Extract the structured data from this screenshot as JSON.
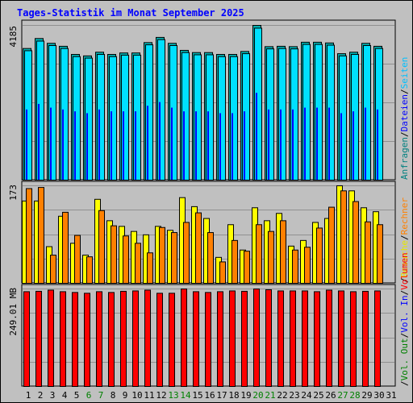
{
  "page": {
    "title": "Tages-Statistik im Monat September 2025"
  },
  "panels": {
    "top_max": "4185",
    "middle_max": "173",
    "bottom_max": "249.01 MB"
  },
  "right_legend": {
    "top": [
      {
        "text": "Anfragen",
        "color": "#008080"
      },
      {
        "text": "/",
        "color": "#000000"
      },
      {
        "text": "Dateien",
        "color": "#0000ff"
      },
      {
        "text": "/",
        "color": "#000000"
      },
      {
        "text": "Seiten",
        "color": "#00c0ff"
      }
    ],
    "middle": [
      {
        "text": "/",
        "color": "#000000"
      },
      {
        "text": "Besuche",
        "color": "#e6e600"
      },
      {
        "text": "/",
        "color": "#000000"
      },
      {
        "text": "Rechner",
        "color": "#ff8000"
      }
    ],
    "bottom": [
      {
        "text": "/",
        "color": "#000000"
      },
      {
        "text": "Vol. Out",
        "color": "#008000"
      },
      {
        "text": "/",
        "color": "#000000"
      },
      {
        "text": "Vol. In",
        "color": "#0000ff"
      },
      {
        "text": "/",
        "color": "#000000"
      },
      {
        "text": "Volumen",
        "color": "#ff0000"
      }
    ]
  },
  "colors": {
    "anfragen": "#00b0b0",
    "dateien": "#0000ff",
    "seiten": "#00e0ff",
    "besuche": "#ffff00",
    "rechner": "#ff8000",
    "volumen": "#ff0000",
    "weekend_label": "#008000"
  },
  "chart_data": [
    {
      "type": "bar",
      "title": "Tages-Statistik im Monat September 2025",
      "categories": [
        "1",
        "2",
        "3",
        "4",
        "5",
        "6",
        "7",
        "8",
        "9",
        "10",
        "11",
        "12",
        "13",
        "14",
        "15",
        "16",
        "17",
        "18",
        "19",
        "20",
        "21",
        "22",
        "23",
        "24",
        "25",
        "26",
        "27",
        "28",
        "29",
        "30",
        "31"
      ],
      "weekend_categories": [
        "6",
        "7",
        "13",
        "14",
        "20",
        "21",
        "27",
        "28"
      ],
      "ylim": [
        0,
        4185
      ],
      "series": [
        {
          "name": "Anfragen",
          "values": [
            3560,
            3830,
            3700,
            3620,
            3400,
            3360,
            3460,
            3400,
            3440,
            3440,
            3720,
            3860,
            3700,
            3510,
            3450,
            3450,
            3400,
            3400,
            3480,
            4185,
            3610,
            3620,
            3610,
            3730,
            3730,
            3710,
            3420,
            3460,
            3700,
            3620,
            0
          ]
        },
        {
          "name": "Dateien",
          "values": [
            1900,
            2050,
            1950,
            1900,
            1850,
            1800,
            1900,
            1850,
            1850,
            1850,
            2000,
            2100,
            1950,
            1850,
            1850,
            1850,
            1800,
            1800,
            1850,
            2350,
            1900,
            1900,
            1900,
            1950,
            1950,
            1950,
            1800,
            1850,
            1950,
            1900,
            0
          ]
        },
        {
          "name": "Seiten",
          "values": [
            3500,
            3760,
            3640,
            3560,
            3340,
            3300,
            3400,
            3340,
            3380,
            3380,
            3660,
            3800,
            3640,
            3450,
            3390,
            3390,
            3340,
            3340,
            3420,
            4110,
            3550,
            3560,
            3550,
            3670,
            3670,
            3650,
            3360,
            3400,
            3640,
            3560,
            0
          ]
        }
      ]
    },
    {
      "type": "bar",
      "categories": [
        "1",
        "2",
        "3",
        "4",
        "5",
        "6",
        "7",
        "8",
        "9",
        "10",
        "11",
        "12",
        "13",
        "14",
        "15",
        "16",
        "17",
        "18",
        "19",
        "20",
        "21",
        "22",
        "23",
        "24",
        "25",
        "26",
        "27",
        "28",
        "29",
        "30",
        "31"
      ],
      "ylim": [
        0,
        173
      ],
      "series": [
        {
          "name": "Besuche",
          "values": [
            146,
            146,
            65,
            119,
            71,
            50,
            149,
            111,
            101,
            92,
            86,
            101,
            94,
            152,
            136,
            115,
            46,
            104,
            59,
            134,
            111,
            124,
            66,
            76,
            108,
            115,
            173,
            164,
            134,
            127,
            0
          ]
        },
        {
          "name": "Rechner",
          "values": [
            168,
            170,
            50,
            126,
            85,
            47,
            129,
            102,
            84,
            71,
            54,
            99,
            90,
            108,
            125,
            90,
            38,
            76,
            57,
            104,
            92,
            111,
            59,
            64,
            98,
            135,
            164,
            145,
            109,
            104,
            0
          ]
        }
      ]
    },
    {
      "type": "bar",
      "categories": [
        "1",
        "2",
        "3",
        "4",
        "5",
        "6",
        "7",
        "8",
        "9",
        "10",
        "11",
        "12",
        "13",
        "14",
        "15",
        "16",
        "17",
        "18",
        "19",
        "20",
        "21",
        "22",
        "23",
        "24",
        "25",
        "26",
        "27",
        "28",
        "29",
        "30",
        "31"
      ],
      "ylim": [
        0,
        249.01
      ],
      "series": [
        {
          "name": "Volumen",
          "values": [
            242,
            243,
            246,
            242,
            240,
            238,
            242,
            240,
            243,
            244,
            246,
            238,
            238,
            249,
            242,
            240,
            242,
            244,
            243,
            249,
            247,
            244,
            244,
            244,
            242,
            246,
            244,
            242,
            243,
            244,
            0
          ]
        }
      ]
    }
  ]
}
